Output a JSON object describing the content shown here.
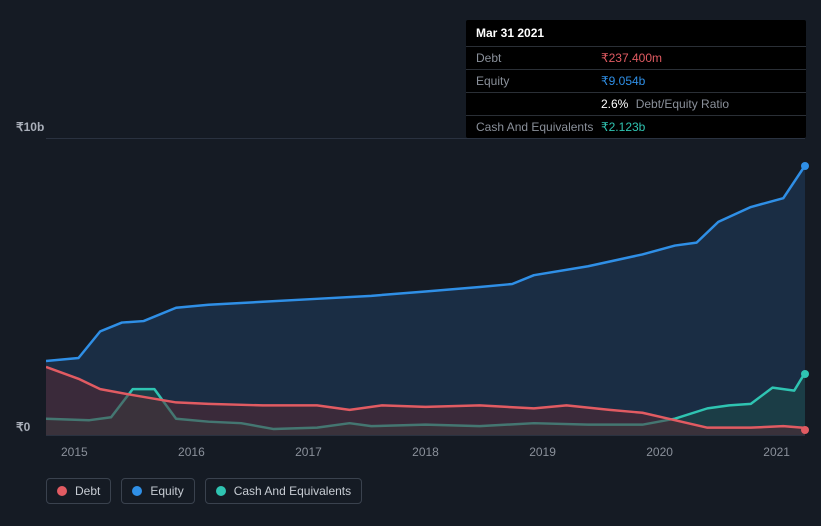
{
  "tooltip": {
    "date": "Mar 31 2021",
    "rows": [
      {
        "label": "Debt",
        "value": "₹237.400m",
        "color": "#e15b62"
      },
      {
        "label": "Equity",
        "value": "₹9.054b",
        "color": "#2f8fe6"
      },
      {
        "label": "",
        "ratio_pct": "2.6%",
        "ratio_label": "Debt/Equity Ratio",
        "color": "#ffffff"
      },
      {
        "label": "Cash And Equivalents",
        "value": "₹2.123b",
        "color": "#2fc4b2"
      }
    ]
  },
  "chart": {
    "type": "area",
    "background_color": "#151b24",
    "grid_color": "#2a3240",
    "y_label_top": "₹10b",
    "y_label_bottom": "₹0",
    "ylim": [
      0,
      10
    ],
    "xlim": [
      2014.5,
      2021.5
    ],
    "x_ticks": [
      "2015",
      "2016",
      "2017",
      "2018",
      "2019",
      "2020",
      "2021"
    ],
    "label_fontsize": 12,
    "series": [
      {
        "name": "Equity",
        "color": "#2f8fe6",
        "fill": "#1e3a5a",
        "fill_opacity": 0.6,
        "line_width": 2.5,
        "points": [
          [
            2014.5,
            2.5
          ],
          [
            2014.8,
            2.6
          ],
          [
            2015.0,
            3.5
          ],
          [
            2015.2,
            3.8
          ],
          [
            2015.4,
            3.85
          ],
          [
            2015.7,
            4.3
          ],
          [
            2016.0,
            4.4
          ],
          [
            2016.5,
            4.5
          ],
          [
            2017.0,
            4.6
          ],
          [
            2017.5,
            4.7
          ],
          [
            2018.0,
            4.85
          ],
          [
            2018.5,
            5.0
          ],
          [
            2018.8,
            5.1
          ],
          [
            2019.0,
            5.4
          ],
          [
            2019.5,
            5.7
          ],
          [
            2020.0,
            6.1
          ],
          [
            2020.3,
            6.4
          ],
          [
            2020.5,
            6.5
          ],
          [
            2020.7,
            7.2
          ],
          [
            2021.0,
            7.7
          ],
          [
            2021.3,
            8.0
          ],
          [
            2021.5,
            9.1
          ]
        ]
      },
      {
        "name": "Cash And Equivalents",
        "color": "#2fc4b2",
        "fill": "#1d4a48",
        "fill_opacity": 0.55,
        "line_width": 2.5,
        "points": [
          [
            2014.5,
            0.55
          ],
          [
            2014.9,
            0.5
          ],
          [
            2015.1,
            0.6
          ],
          [
            2015.3,
            1.55
          ],
          [
            2015.5,
            1.55
          ],
          [
            2015.7,
            0.55
          ],
          [
            2016.0,
            0.45
          ],
          [
            2016.3,
            0.4
          ],
          [
            2016.6,
            0.2
          ],
          [
            2017.0,
            0.25
          ],
          [
            2017.3,
            0.4
          ],
          [
            2017.5,
            0.3
          ],
          [
            2018.0,
            0.35
          ],
          [
            2018.5,
            0.3
          ],
          [
            2019.0,
            0.4
          ],
          [
            2019.5,
            0.35
          ],
          [
            2020.0,
            0.35
          ],
          [
            2020.3,
            0.55
          ],
          [
            2020.6,
            0.9
          ],
          [
            2020.8,
            1.0
          ],
          [
            2021.0,
            1.05
          ],
          [
            2021.2,
            1.6
          ],
          [
            2021.4,
            1.5
          ],
          [
            2021.5,
            2.1
          ]
        ]
      },
      {
        "name": "Debt",
        "color": "#e15b62",
        "fill": "#5a2730",
        "fill_opacity": 0.5,
        "line_width": 2.5,
        "points": [
          [
            2014.5,
            2.3
          ],
          [
            2014.8,
            1.9
          ],
          [
            2015.0,
            1.55
          ],
          [
            2015.3,
            1.35
          ],
          [
            2015.7,
            1.1
          ],
          [
            2016.0,
            1.05
          ],
          [
            2016.5,
            1.0
          ],
          [
            2017.0,
            1.0
          ],
          [
            2017.3,
            0.85
          ],
          [
            2017.6,
            1.0
          ],
          [
            2018.0,
            0.95
          ],
          [
            2018.5,
            1.0
          ],
          [
            2019.0,
            0.9
          ],
          [
            2019.3,
            1.0
          ],
          [
            2019.7,
            0.85
          ],
          [
            2020.0,
            0.75
          ],
          [
            2020.3,
            0.5
          ],
          [
            2020.6,
            0.25
          ],
          [
            2021.0,
            0.25
          ],
          [
            2021.3,
            0.3
          ],
          [
            2021.5,
            0.24
          ]
        ]
      }
    ],
    "legend": [
      {
        "label": "Debt",
        "color": "#e15b62"
      },
      {
        "label": "Equity",
        "color": "#2f8fe6"
      },
      {
        "label": "Cash And Equivalents",
        "color": "#2fc4b2"
      }
    ]
  }
}
